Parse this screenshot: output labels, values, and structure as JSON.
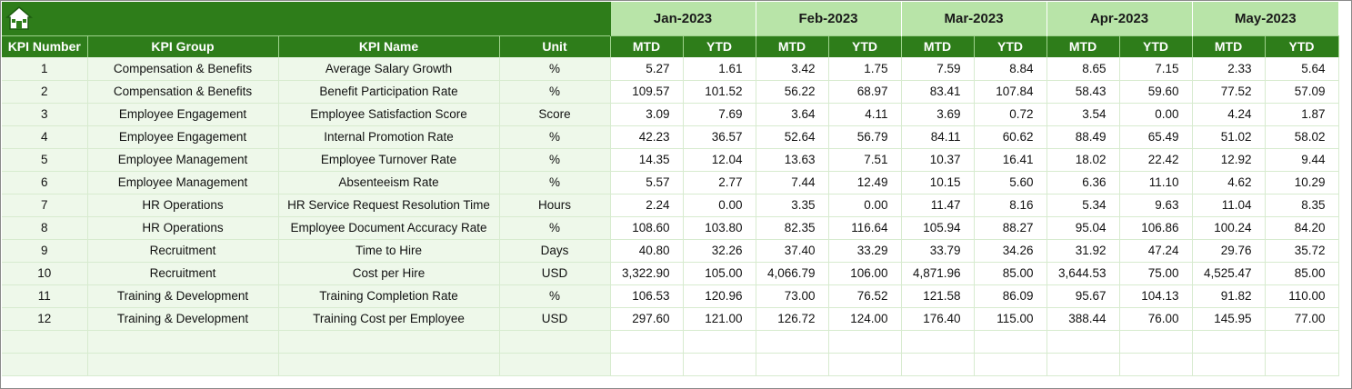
{
  "header": {
    "months": [
      "Jan-2023",
      "Feb-2023",
      "Mar-2023",
      "Apr-2023",
      "May-2023"
    ],
    "columns": [
      "KPI Number",
      "KPI Group",
      "KPI Name",
      "Unit"
    ],
    "sub_columns": [
      "MTD",
      "YTD"
    ]
  },
  "colors": {
    "header_green": "#2e7d1a",
    "month_band": "#b8e4a8",
    "label_band": "#eef8ea"
  },
  "icons": {
    "home": "home-icon"
  },
  "rows": [
    {
      "num": "1",
      "group": "Compensation & Benefits",
      "name": "Average Salary Growth",
      "unit": "%",
      "values": [
        "5.27",
        "1.61",
        "3.42",
        "1.75",
        "7.59",
        "8.84",
        "8.65",
        "7.15",
        "2.33",
        "5.64"
      ]
    },
    {
      "num": "2",
      "group": "Compensation & Benefits",
      "name": "Benefit Participation Rate",
      "unit": "%",
      "values": [
        "109.57",
        "101.52",
        "56.22",
        "68.97",
        "83.41",
        "107.84",
        "58.43",
        "59.60",
        "77.52",
        "57.09"
      ]
    },
    {
      "num": "3",
      "group": "Employee Engagement",
      "name": "Employee Satisfaction Score",
      "unit": "Score",
      "values": [
        "3.09",
        "7.69",
        "3.64",
        "4.11",
        "3.69",
        "0.72",
        "3.54",
        "0.00",
        "4.24",
        "1.87"
      ]
    },
    {
      "num": "4",
      "group": "Employee Engagement",
      "name": "Internal Promotion Rate",
      "unit": "%",
      "values": [
        "42.23",
        "36.57",
        "52.64",
        "56.79",
        "84.11",
        "60.62",
        "88.49",
        "65.49",
        "51.02",
        "58.02"
      ]
    },
    {
      "num": "5",
      "group": "Employee Management",
      "name": "Employee Turnover Rate",
      "unit": "%",
      "values": [
        "14.35",
        "12.04",
        "13.63",
        "7.51",
        "10.37",
        "16.41",
        "18.02",
        "22.42",
        "12.92",
        "9.44"
      ]
    },
    {
      "num": "6",
      "group": "Employee Management",
      "name": "Absenteeism Rate",
      "unit": "%",
      "values": [
        "5.57",
        "2.77",
        "7.44",
        "12.49",
        "10.15",
        "5.60",
        "6.36",
        "11.10",
        "4.62",
        "10.29"
      ]
    },
    {
      "num": "7",
      "group": "HR Operations",
      "name": "HR Service Request Resolution Time",
      "unit": "Hours",
      "values": [
        "2.24",
        "0.00",
        "3.35",
        "0.00",
        "11.47",
        "8.16",
        "5.34",
        "9.63",
        "11.04",
        "8.35"
      ]
    },
    {
      "num": "8",
      "group": "HR Operations",
      "name": "Employee Document Accuracy Rate",
      "unit": "%",
      "values": [
        "108.60",
        "103.80",
        "82.35",
        "116.64",
        "105.94",
        "88.27",
        "95.04",
        "106.86",
        "100.24",
        "84.20"
      ]
    },
    {
      "num": "9",
      "group": "Recruitment",
      "name": "Time to Hire",
      "unit": "Days",
      "values": [
        "40.80",
        "32.26",
        "37.40",
        "33.29",
        "33.79",
        "34.26",
        "31.92",
        "47.24",
        "29.76",
        "35.72"
      ]
    },
    {
      "num": "10",
      "group": "Recruitment",
      "name": "Cost per Hire",
      "unit": "USD",
      "values": [
        "3,322.90",
        "105.00",
        "4,066.79",
        "106.00",
        "4,871.96",
        "85.00",
        "3,644.53",
        "75.00",
        "4,525.47",
        "85.00"
      ]
    },
    {
      "num": "11",
      "group": "Training & Development",
      "name": "Training Completion Rate",
      "unit": "%",
      "values": [
        "106.53",
        "120.96",
        "73.00",
        "76.52",
        "121.58",
        "86.09",
        "95.67",
        "104.13",
        "91.82",
        "110.00"
      ]
    },
    {
      "num": "12",
      "group": "Training & Development",
      "name": "Training Cost per Employee",
      "unit": "USD",
      "values": [
        "297.60",
        "121.00",
        "126.72",
        "124.00",
        "176.40",
        "115.00",
        "388.44",
        "76.00",
        "145.95",
        "77.00"
      ]
    },
    {
      "num": "",
      "group": "",
      "name": "",
      "unit": "",
      "values": [
        "",
        "",
        "",
        "",
        "",
        "",
        "",
        "",
        "",
        ""
      ]
    },
    {
      "num": "",
      "group": "",
      "name": "",
      "unit": "",
      "values": [
        "",
        "",
        "",
        "",
        "",
        "",
        "",
        "",
        "",
        ""
      ]
    }
  ]
}
